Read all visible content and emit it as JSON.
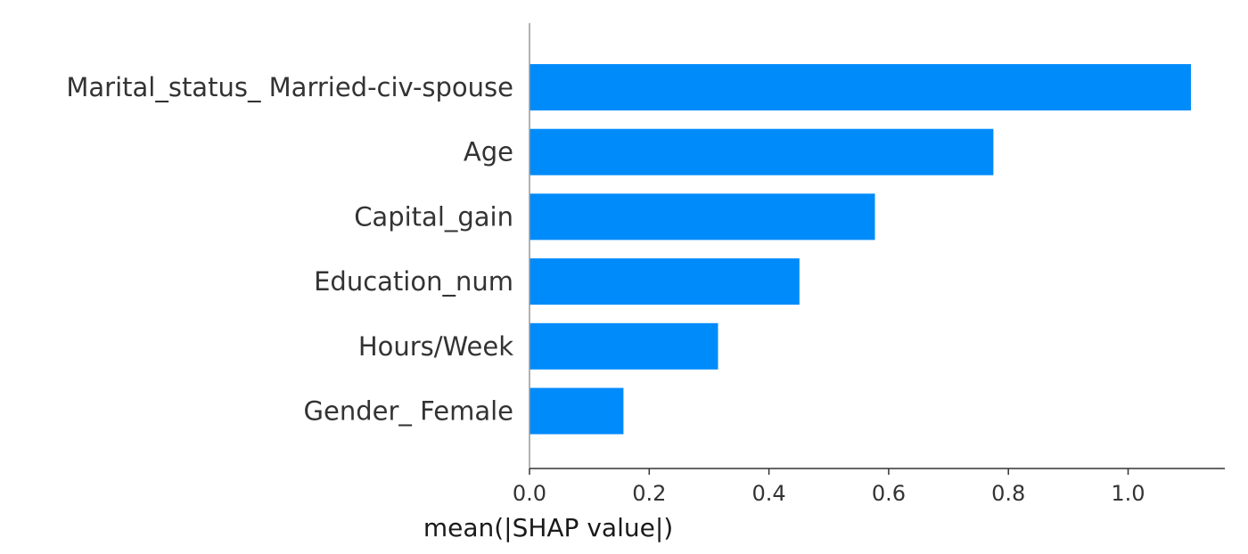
{
  "chart_data": {
    "type": "bar",
    "orientation": "horizontal",
    "categories": [
      "Marital_status_ Married-civ-spouse",
      "Age",
      "Capital_gain",
      "Education_num",
      "Hours/Week",
      "Gender_ Female"
    ],
    "values": [
      1.105,
      0.775,
      0.577,
      0.451,
      0.315,
      0.157
    ],
    "xlabel": "mean(|SHAP value|)",
    "ylabel": "",
    "xlim": [
      0,
      1.16
    ],
    "xticks": [
      "0.0",
      "0.2",
      "0.4",
      "0.6",
      "0.8",
      "1.0"
    ],
    "xtick_values": [
      0,
      0.2,
      0.4,
      0.6,
      0.8,
      1.0
    ],
    "grid": false,
    "bar_color": "#008bfb"
  }
}
